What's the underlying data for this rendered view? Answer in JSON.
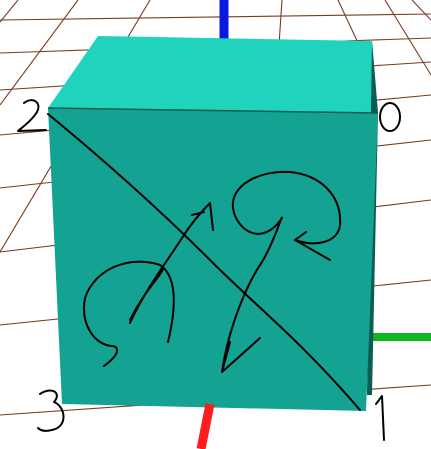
{
  "scene": {
    "background": "#ffffff",
    "grid_color": "#7a3b1e",
    "axis_colors": {
      "y_up": "#0a17e0",
      "x": "#ff1e1e",
      "z": "#10b81d"
    },
    "cube_colors": {
      "top": "#1fd3bd",
      "front": "#14a392",
      "edge": "#0b5d54"
    },
    "stroke_color": "#000000",
    "vertex_labels": [
      "0",
      "1",
      "2",
      "3"
    ]
  }
}
